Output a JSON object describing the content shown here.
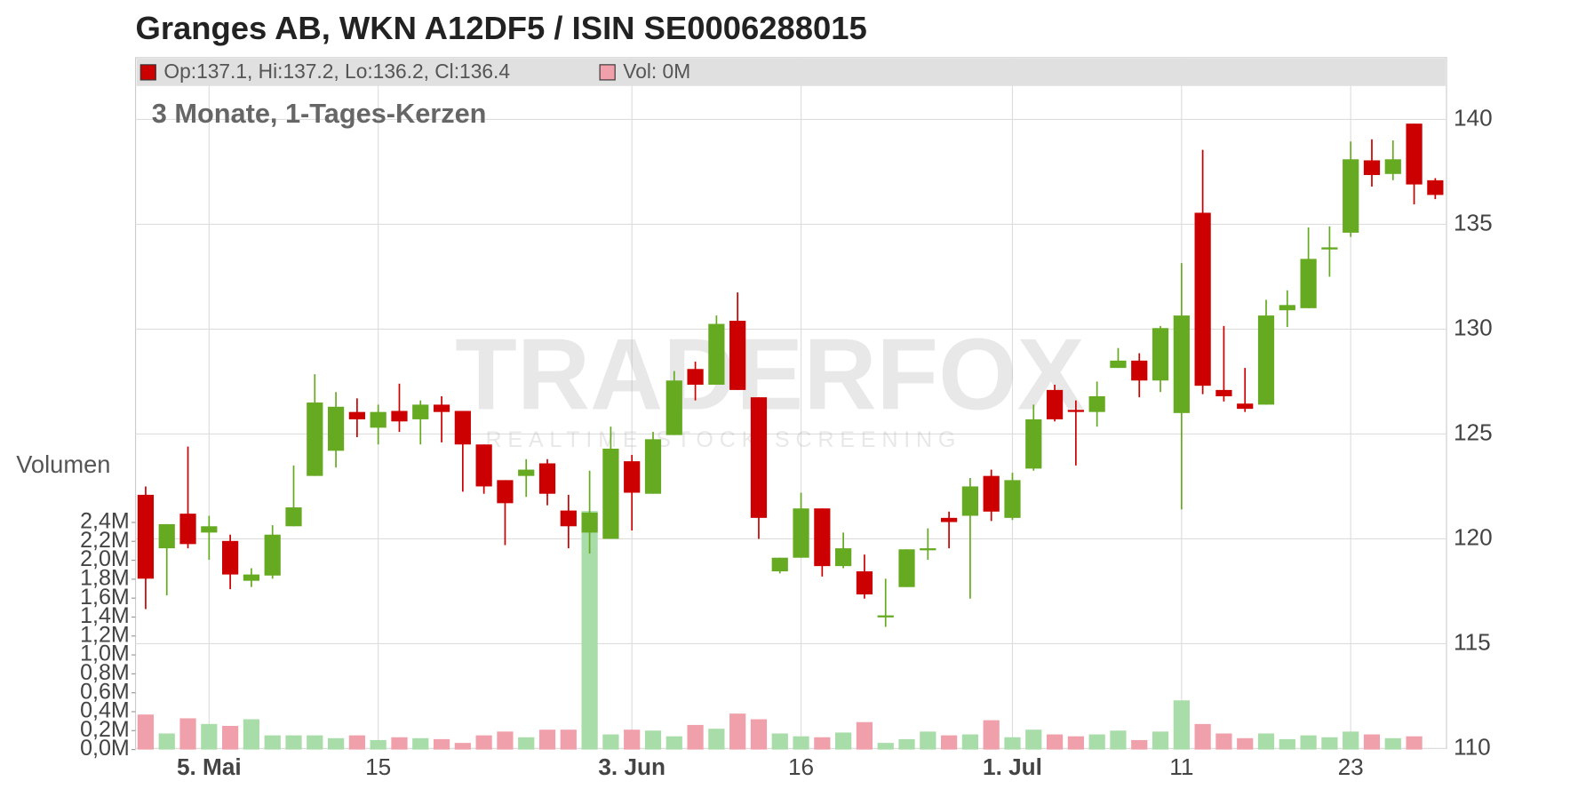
{
  "chart_data": {
    "type": "candlestick",
    "title": "Granges AB, WKN A12DF5 / ISIN SE0006288015",
    "subtitle": "3 Monate, 1-Tages-Kerzen",
    "legend": [
      "Op:137.1, Hi:137.2, Lo:136.2, Cl:136.4",
      "Vol: 0M"
    ],
    "volume_axis_label": "Volumen",
    "watermark": [
      "TRADERFOX",
      "REALTIME STOCK SCREENING"
    ],
    "up_color": "#66aa22",
    "down_color": "#cc0000",
    "up_volume_color": "#a8dca8",
    "down_volume_color": "#f0a0aa",
    "grid": true,
    "categories": [
      null,
      null,
      null,
      "5. Mai",
      null,
      null,
      null,
      null,
      null,
      null,
      null,
      "15",
      null,
      null,
      null,
      null,
      null,
      null,
      null,
      null,
      null,
      null,
      null,
      "3. Jun",
      null,
      null,
      null,
      null,
      null,
      null,
      null,
      "16",
      null,
      null,
      null,
      null,
      null,
      null,
      null,
      null,
      null,
      "1. Jul",
      null,
      null,
      null,
      null,
      null,
      null,
      null,
      "11",
      null,
      null,
      null,
      null,
      null,
      null,
      null,
      "23",
      null,
      null,
      null,
      null
    ],
    "open": [
      122.1,
      119.55,
      121.2,
      120.3,
      119.9,
      118.0,
      118.25,
      120.6,
      123.0,
      124.2,
      126.05,
      125.3,
      126.1,
      125.7,
      126.4,
      126.1,
      124.5,
      122.8,
      123.0,
      123.6,
      121.35,
      120.3,
      120.0,
      123.7,
      122.15,
      124.95,
      128.1,
      127.35,
      130.4,
      126.75,
      118.45,
      119.1,
      121.45,
      118.7,
      118.45,
      116.3,
      117.7,
      119.5,
      121.0,
      121.1,
      123.0,
      121.0,
      123.35,
      127.1,
      126.15,
      126.05,
      128.15,
      128.5,
      127.55,
      126.0,
      135.55,
      127.1,
      126.45,
      126.4,
      130.9,
      131.0,
      133.8,
      134.6,
      138.05,
      137.4,
      139.8,
      137.1
    ],
    "high": [
      122.5,
      120.7,
      124.4,
      121.1,
      120.2,
      118.6,
      120.65,
      123.5,
      127.85,
      127.0,
      126.7,
      126.4,
      127.4,
      126.6,
      126.8,
      126.1,
      124.5,
      122.8,
      123.8,
      123.8,
      122.1,
      123.25,
      125.35,
      124.0,
      125.1,
      128.0,
      128.45,
      130.65,
      131.75,
      126.75,
      119.1,
      122.2,
      121.45,
      120.3,
      119.25,
      118.1,
      119.5,
      120.5,
      121.3,
      122.9,
      123.3,
      123.15,
      126.4,
      127.35,
      126.6,
      127.5,
      129.1,
      128.85,
      130.15,
      133.15,
      138.55,
      130.15,
      128.15,
      131.4,
      131.85,
      134.85,
      134.9,
      138.95,
      139.05,
      139.0,
      139.8,
      137.2
    ],
    "low": [
      116.65,
      117.3,
      119.55,
      119.0,
      117.6,
      117.7,
      118.1,
      120.6,
      123.0,
      123.4,
      124.85,
      124.5,
      125.1,
      124.5,
      124.6,
      122.25,
      122.15,
      119.7,
      122.0,
      121.6,
      119.55,
      119.3,
      120.0,
      120.4,
      122.15,
      124.95,
      126.6,
      127.35,
      127.1,
      120.0,
      118.35,
      119.1,
      118.2,
      118.6,
      117.15,
      115.8,
      117.7,
      119.0,
      119.55,
      117.15,
      120.85,
      120.9,
      123.25,
      125.6,
      123.5,
      125.35,
      128.15,
      126.75,
      127.0,
      121.4,
      126.9,
      126.55,
      126.05,
      126.4,
      130.1,
      131.0,
      132.5,
      134.4,
      136.8,
      137.1,
      135.95,
      136.2
    ],
    "close": [
      118.1,
      120.7,
      119.75,
      120.6,
      118.3,
      118.3,
      120.2,
      121.5,
      126.5,
      126.3,
      125.7,
      126.05,
      125.6,
      126.4,
      126.05,
      124.5,
      122.5,
      121.7,
      123.3,
      122.15,
      120.6,
      121.25,
      124.3,
      122.2,
      124.75,
      127.55,
      127.35,
      130.25,
      127.1,
      121.0,
      119.1,
      121.45,
      118.7,
      119.55,
      117.35,
      116.35,
      119.5,
      119.55,
      120.8,
      122.5,
      121.3,
      122.8,
      125.7,
      125.7,
      126.05,
      126.8,
      128.5,
      127.55,
      130.05,
      130.65,
      127.3,
      126.8,
      126.2,
      130.65,
      131.15,
      133.35,
      133.9,
      138.1,
      137.35,
      138.1,
      136.9,
      136.4
    ],
    "volume": [
      0.37,
      0.17,
      0.33,
      0.27,
      0.25,
      0.32,
      0.15,
      0.15,
      0.15,
      0.12,
      0.15,
      0.1,
      0.13,
      0.12,
      0.11,
      0.07,
      0.15,
      0.19,
      0.13,
      0.21,
      0.21,
      2.52,
      0.16,
      0.21,
      0.2,
      0.14,
      0.26,
      0.22,
      0.38,
      0.32,
      0.17,
      0.14,
      0.13,
      0.18,
      0.29,
      0.07,
      0.11,
      0.19,
      0.15,
      0.16,
      0.31,
      0.13,
      0.21,
      0.16,
      0.14,
      0.16,
      0.2,
      0.1,
      0.19,
      0.52,
      0.27,
      0.17,
      0.12,
      0.17,
      0.11,
      0.15,
      0.13,
      0.19,
      0.16,
      0.12,
      0.14,
      0
    ],
    "ylim": [
      110,
      142.85
    ],
    "yticks": [
      110,
      115,
      120,
      125,
      130,
      135,
      140
    ],
    "volume_ylim": [
      0,
      7.3
    ],
    "volume_ticks": [
      {
        "value": 0,
        "label": "0,0M"
      },
      {
        "value": 0.2,
        "label": "0,2M"
      },
      {
        "value": 0.4,
        "label": "0,4M"
      },
      {
        "value": 0.6,
        "label": "0,6M"
      },
      {
        "value": 0.8,
        "label": "0,8M"
      },
      {
        "value": 1.0,
        "label": "1,0M"
      },
      {
        "value": 1.2,
        "label": "1,2M"
      },
      {
        "value": 1.4,
        "label": "1,4M"
      },
      {
        "value": 1.6,
        "label": "1,6M"
      },
      {
        "value": 1.8,
        "label": "1,8M"
      },
      {
        "value": 2.0,
        "label": "2,0M"
      },
      {
        "value": 2.2,
        "label": "2,2M"
      },
      {
        "value": 2.4,
        "label": "2,4M"
      }
    ]
  }
}
